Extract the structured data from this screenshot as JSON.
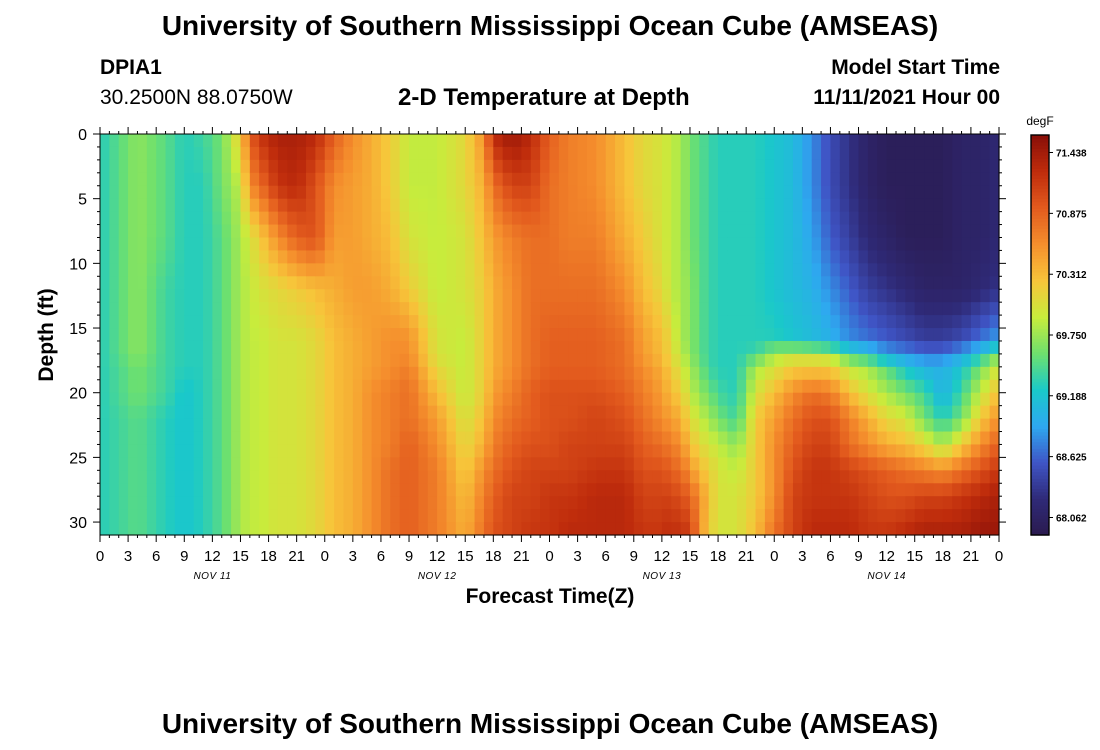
{
  "header": {
    "title": "University of Southern Mississippi Ocean Cube (AMSEAS)",
    "station_id": "DPIA1",
    "coordinates": "30.2500N  88.0750W",
    "subtitle": "2-D Temperature at Depth",
    "model_start_label": "Model Start Time",
    "model_start_value": "11/11/2021 Hour 00"
  },
  "footer": {
    "title": "University of Southern Mississippi Ocean Cube (AMSEAS)"
  },
  "chart_data": {
    "type": "heatmap",
    "title": "2-D Temperature at Depth",
    "xlabel": "Forecast Time(Z)",
    "ylabel": "Depth (ft)",
    "x_range_hours": [
      0,
      96
    ],
    "x_tick_labels": [
      "0",
      "3",
      "6",
      "9",
      "12",
      "15",
      "18",
      "21",
      "0",
      "3",
      "6",
      "9",
      "12",
      "15",
      "18",
      "21",
      "0",
      "3",
      "6",
      "9",
      "12",
      "15",
      "18",
      "21",
      "0",
      "3",
      "6",
      "9",
      "12",
      "15",
      "18",
      "21",
      "0"
    ],
    "day_labels": [
      {
        "label": "NOV 11",
        "hour": 12
      },
      {
        "label": "NOV 12",
        "hour": 36
      },
      {
        "label": "NOV 13",
        "hour": 60
      },
      {
        "label": "NOV 14",
        "hour": 84
      }
    ],
    "y_range_ft": [
      0,
      31
    ],
    "y_ticks": [
      0,
      5,
      10,
      15,
      20,
      25,
      30
    ],
    "y_tick_labels": [
      "0",
      "5",
      "10",
      "15",
      "20",
      "25",
      "30"
    ],
    "colorbar": {
      "unit": "degF",
      "min": 67.9,
      "max": 71.6,
      "tick_values": [
        71.438,
        70.875,
        70.312,
        69.75,
        69.188,
        68.625,
        68.062
      ],
      "tick_labels": [
        "71.438",
        "70.875",
        "70.312",
        "69.750",
        "69.188",
        "68.625",
        "68.062"
      ],
      "colors": [
        "#2a1a4e",
        "#2f2a78",
        "#3f55c6",
        "#2ea8f0",
        "#1ac9c9",
        "#6ee06e",
        "#c8ec3c",
        "#f7c53a",
        "#f58f2d",
        "#e35b1e",
        "#bf2c0c",
        "#8a0f08"
      ]
    },
    "time_hours": [
      0,
      4,
      7,
      9,
      11,
      13,
      15,
      16,
      17,
      19,
      21,
      23,
      25,
      27,
      29,
      31,
      33,
      36,
      39,
      41,
      42,
      44,
      46,
      48,
      50,
      53,
      56,
      58,
      60,
      61,
      62,
      63,
      64,
      65,
      66,
      68,
      70,
      72,
      74,
      76,
      78,
      80,
      82,
      84,
      86,
      88,
      90,
      92,
      94,
      96
    ],
    "depth_ft": [
      0,
      4,
      8,
      12,
      16,
      17,
      18,
      20,
      22,
      24,
      26,
      28,
      31
    ],
    "temperature_degF": [
      [
        69.3,
        69.3,
        69.3,
        69.3,
        69.3,
        69.3,
        69.3,
        69.3,
        69.3,
        69.3,
        69.3,
        69.3,
        69.3
      ],
      [
        69.7,
        69.7,
        69.7,
        69.7,
        69.7,
        69.7,
        69.6,
        69.6,
        69.5,
        69.5,
        69.5,
        69.5,
        69.5
      ],
      [
        69.5,
        69.5,
        69.5,
        69.4,
        69.4,
        69.4,
        69.4,
        69.4,
        69.3,
        69.3,
        69.3,
        69.3,
        69.3
      ],
      [
        69.3,
        69.3,
        69.3,
        69.3,
        69.3,
        69.3,
        69.3,
        69.2,
        69.2,
        69.2,
        69.2,
        69.2,
        69.2
      ],
      [
        69.4,
        69.3,
        69.3,
        69.3,
        69.3,
        69.3,
        69.3,
        69.3,
        69.3,
        69.3,
        69.3,
        69.3,
        69.3
      ],
      [
        69.6,
        69.6,
        69.5,
        69.5,
        69.5,
        69.5,
        69.5,
        69.5,
        69.5,
        69.5,
        69.5,
        69.5,
        69.5
      ],
      [
        70.2,
        69.9,
        69.8,
        69.8,
        69.8,
        69.8,
        69.8,
        69.8,
        69.8,
        69.8,
        69.8,
        69.8,
        69.8
      ],
      [
        70.9,
        70.6,
        70.0,
        69.9,
        69.9,
        69.9,
        69.9,
        69.9,
        69.9,
        69.9,
        69.9,
        69.9,
        69.9
      ],
      [
        71.2,
        70.8,
        70.2,
        70.0,
        69.9,
        69.9,
        69.9,
        69.9,
        69.9,
        69.9,
        69.9,
        69.9,
        69.9
      ],
      [
        71.4,
        71.2,
        70.6,
        70.1,
        70.0,
        70.0,
        70.0,
        70.0,
        70.0,
        70.0,
        70.0,
        70.0,
        70.0
      ],
      [
        71.4,
        71.3,
        70.9,
        70.2,
        70.0,
        70.0,
        70.0,
        70.0,
        70.0,
        70.0,
        70.0,
        70.0,
        70.0
      ],
      [
        71.3,
        71.0,
        71.0,
        70.3,
        70.1,
        70.1,
        70.1,
        70.1,
        70.1,
        70.1,
        70.1,
        70.1,
        70.1
      ],
      [
        70.9,
        70.6,
        70.5,
        70.4,
        70.3,
        70.3,
        70.3,
        70.3,
        70.3,
        70.3,
        70.3,
        70.3,
        70.3
      ],
      [
        70.6,
        70.5,
        70.5,
        70.5,
        70.4,
        70.4,
        70.4,
        70.4,
        70.4,
        70.4,
        70.4,
        70.4,
        70.4
      ],
      [
        70.4,
        70.4,
        70.4,
        70.5,
        70.5,
        70.5,
        70.5,
        70.6,
        70.6,
        70.6,
        70.6,
        70.6,
        70.6
      ],
      [
        70.2,
        70.2,
        70.3,
        70.4,
        70.6,
        70.6,
        70.6,
        70.7,
        70.7,
        70.7,
        70.8,
        70.8,
        70.8
      ],
      [
        69.9,
        69.9,
        70.0,
        70.2,
        70.6,
        70.6,
        70.7,
        70.8,
        70.8,
        70.9,
        70.9,
        70.9,
        70.9
      ],
      [
        69.9,
        69.9,
        69.9,
        69.9,
        70.0,
        70.0,
        70.1,
        70.3,
        70.5,
        70.6,
        70.7,
        70.7,
        70.7
      ],
      [
        70.1,
        70.1,
        70.0,
        70.0,
        69.9,
        69.9,
        69.9,
        69.9,
        70.0,
        70.1,
        70.2,
        70.3,
        70.4
      ],
      [
        70.6,
        70.4,
        70.3,
        70.2,
        70.2,
        70.2,
        70.2,
        70.2,
        70.3,
        70.4,
        70.6,
        70.7,
        70.8
      ],
      [
        71.3,
        70.8,
        70.5,
        70.4,
        70.4,
        70.4,
        70.4,
        70.5,
        70.6,
        70.7,
        70.8,
        70.9,
        71.0
      ],
      [
        71.5,
        71.1,
        70.7,
        70.6,
        70.6,
        70.6,
        70.6,
        70.7,
        70.8,
        70.9,
        71.0,
        71.1,
        71.1
      ],
      [
        71.3,
        71.1,
        70.8,
        70.8,
        70.8,
        70.8,
        70.8,
        70.9,
        70.9,
        71.0,
        71.1,
        71.1,
        71.2
      ],
      [
        70.9,
        70.8,
        70.8,
        70.8,
        70.9,
        70.9,
        70.9,
        71.0,
        71.0,
        71.0,
        71.1,
        71.2,
        71.2
      ],
      [
        70.7,
        70.7,
        70.7,
        70.8,
        70.9,
        70.9,
        70.9,
        71.0,
        71.0,
        71.1,
        71.1,
        71.2,
        71.3
      ],
      [
        70.6,
        70.6,
        70.7,
        70.8,
        70.9,
        70.9,
        70.9,
        71.0,
        71.1,
        71.1,
        71.2,
        71.3,
        71.3
      ],
      [
        70.3,
        70.3,
        70.4,
        70.6,
        70.8,
        70.8,
        70.8,
        70.9,
        71.0,
        71.1,
        71.2,
        71.3,
        71.3
      ],
      [
        70.1,
        70.1,
        70.2,
        70.3,
        70.5,
        70.5,
        70.6,
        70.7,
        70.8,
        70.9,
        71.0,
        71.1,
        71.2
      ],
      [
        70.0,
        70.0,
        70.0,
        70.1,
        70.3,
        70.3,
        70.4,
        70.5,
        70.6,
        70.8,
        71.0,
        71.1,
        71.2
      ],
      [
        69.9,
        69.9,
        69.9,
        69.9,
        70.1,
        70.1,
        70.2,
        70.3,
        70.5,
        70.7,
        70.9,
        71.1,
        71.3
      ],
      [
        69.8,
        69.8,
        69.8,
        69.8,
        69.8,
        69.9,
        70.0,
        70.2,
        70.4,
        70.6,
        70.8,
        71.0,
        71.2
      ],
      [
        69.6,
        69.6,
        69.6,
        69.7,
        69.7,
        69.7,
        69.8,
        69.9,
        70.1,
        70.3,
        70.6,
        70.9,
        71.2
      ],
      [
        69.5,
        69.5,
        69.5,
        69.5,
        69.5,
        69.5,
        69.6,
        69.7,
        69.9,
        70.1,
        70.3,
        70.6,
        70.6
      ],
      [
        69.4,
        69.4,
        69.4,
        69.4,
        69.4,
        69.4,
        69.4,
        69.6,
        69.8,
        70.0,
        70.2,
        70.3,
        70.2
      ],
      [
        69.3,
        69.3,
        69.3,
        69.3,
        69.3,
        69.3,
        69.3,
        69.4,
        69.6,
        69.9,
        70.0,
        70.0,
        70.0
      ],
      [
        69.3,
        69.3,
        69.3,
        69.3,
        69.3,
        69.3,
        69.3,
        69.3,
        69.4,
        69.7,
        69.9,
        70.0,
        70.0
      ],
      [
        69.3,
        69.3,
        69.3,
        69.3,
        69.3,
        69.4,
        69.8,
        70.0,
        70.2,
        70.2,
        70.2,
        70.2,
        70.3
      ],
      [
        69.2,
        69.2,
        69.2,
        69.2,
        69.3,
        69.8,
        70.0,
        70.3,
        70.5,
        70.6,
        70.6,
        70.6,
        70.8
      ],
      [
        69.1,
        69.1,
        69.1,
        69.1,
        69.2,
        69.9,
        70.2,
        70.6,
        70.8,
        70.9,
        71.0,
        71.1,
        71.1
      ],
      [
        68.8,
        68.8,
        68.9,
        69.0,
        69.1,
        69.9,
        70.2,
        70.8,
        71.0,
        71.1,
        71.2,
        71.2,
        71.3
      ],
      [
        68.5,
        68.5,
        68.6,
        68.8,
        69.0,
        69.8,
        70.2,
        70.7,
        71.0,
        71.1,
        71.2,
        71.2,
        71.3
      ],
      [
        68.3,
        68.3,
        68.4,
        68.6,
        68.8,
        69.4,
        69.9,
        70.3,
        70.7,
        70.8,
        71.1,
        71.2,
        71.3
      ],
      [
        68.1,
        68.1,
        68.2,
        68.4,
        68.7,
        69.2,
        69.8,
        70.0,
        70.4,
        70.6,
        71.0,
        71.1,
        71.2
      ],
      [
        68.0,
        68.0,
        68.1,
        68.3,
        68.6,
        68.9,
        69.5,
        69.8,
        70.1,
        70.4,
        70.9,
        71.0,
        71.2
      ],
      [
        68.0,
        68.0,
        68.0,
        68.2,
        68.5,
        68.8,
        69.2,
        69.6,
        70.0,
        70.3,
        70.8,
        71.0,
        71.3
      ],
      [
        68.0,
        68.0,
        68.0,
        68.1,
        68.4,
        68.7,
        69.0,
        69.4,
        69.6,
        70.1,
        70.7,
        71.1,
        71.4
      ],
      [
        68.0,
        68.0,
        68.0,
        68.1,
        68.4,
        68.7,
        69.0,
        69.0,
        69.3,
        69.8,
        70.6,
        71.1,
        71.4
      ],
      [
        68.1,
        68.1,
        68.1,
        68.1,
        68.5,
        68.9,
        69.2,
        69.4,
        69.6,
        70.2,
        70.8,
        71.2,
        71.4
      ],
      [
        68.1,
        68.1,
        68.1,
        68.2,
        68.7,
        69.2,
        69.6,
        69.9,
        70.2,
        70.6,
        71.0,
        71.3,
        71.5
      ],
      [
        68.2,
        68.2,
        68.2,
        68.3,
        68.9,
        69.6,
        70.0,
        70.3,
        70.6,
        70.9,
        71.2,
        71.4,
        71.5
      ]
    ]
  }
}
